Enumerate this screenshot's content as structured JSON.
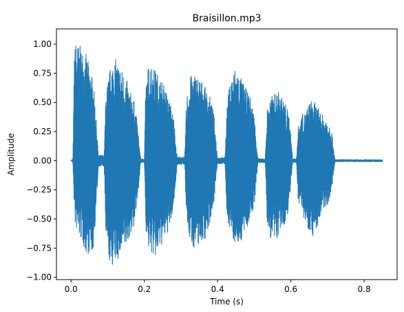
{
  "chart_data": {
    "type": "line",
    "title": "Braisillon.mp3",
    "xlabel": "Time (s)",
    "ylabel": "Amplitude",
    "xlim": [
      -0.04,
      0.89
    ],
    "ylim": [
      -1.02,
      1.13
    ],
    "x_ticks": [
      0.0,
      0.2,
      0.4,
      0.6,
      0.8
    ],
    "x_tick_labels": [
      "0.0",
      "0.2",
      "0.4",
      "0.6",
      "0.8"
    ],
    "y_ticks": [
      1.0,
      0.75,
      0.5,
      0.25,
      0.0,
      -0.25,
      -0.5,
      -0.75,
      -1.0
    ],
    "y_tick_labels": [
      "1.00",
      "0.75",
      "0.50",
      "0.25",
      "0.00",
      "−0.25",
      "−0.50",
      "−0.75",
      "−1.00"
    ],
    "grid": false,
    "series": [
      {
        "color": "#1f77b4",
        "bursts": [
          {
            "start": 0.0,
            "end": 0.075,
            "upper": [
              [
                0.0,
                0.0
              ],
              [
                0.005,
                0.02
              ],
              [
                0.009,
                0.95
              ],
              [
                0.013,
                1.04
              ],
              [
                0.02,
                1.0
              ],
              [
                0.03,
                0.97
              ],
              [
                0.04,
                0.93
              ],
              [
                0.05,
                0.82
              ],
              [
                0.06,
                0.7
              ],
              [
                0.068,
                0.4
              ],
              [
                0.075,
                0.02
              ]
            ],
            "lower": [
              [
                0.0,
                0.0
              ],
              [
                0.005,
                -0.02
              ],
              [
                0.01,
                -0.55
              ],
              [
                0.02,
                -0.65
              ],
              [
                0.03,
                -0.7
              ],
              [
                0.04,
                -0.8
              ],
              [
                0.05,
                -0.8
              ],
              [
                0.06,
                -0.8
              ],
              [
                0.068,
                -0.45
              ],
              [
                0.075,
                -0.02
              ]
            ]
          },
          {
            "start": 0.09,
            "end": 0.19,
            "upper": [
              [
                0.09,
                0.03
              ],
              [
                0.095,
                0.6
              ],
              [
                0.11,
                0.85
              ],
              [
                0.12,
                0.88
              ],
              [
                0.13,
                0.84
              ],
              [
                0.15,
                0.72
              ],
              [
                0.16,
                0.6
              ],
              [
                0.17,
                0.55
              ],
              [
                0.18,
                0.35
              ],
              [
                0.19,
                0.02
              ]
            ],
            "lower": [
              [
                0.09,
                -0.03
              ],
              [
                0.095,
                -0.7
              ],
              [
                0.105,
                -0.88
              ],
              [
                0.11,
                -0.92
              ],
              [
                0.12,
                -0.88
              ],
              [
                0.13,
                -0.85
              ],
              [
                0.15,
                -0.75
              ],
              [
                0.16,
                -0.65
              ],
              [
                0.17,
                -0.6
              ],
              [
                0.18,
                -0.4
              ],
              [
                0.19,
                -0.02
              ]
            ]
          },
          {
            "start": 0.2,
            "end": 0.29,
            "upper": [
              [
                0.2,
                0.02
              ],
              [
                0.203,
                0.6
              ],
              [
                0.21,
                0.8
              ],
              [
                0.215,
                0.87
              ],
              [
                0.22,
                0.84
              ],
              [
                0.23,
                0.78
              ],
              [
                0.25,
                0.68
              ],
              [
                0.26,
                0.6
              ],
              [
                0.27,
                0.5
              ],
              [
                0.28,
                0.38
              ],
              [
                0.29,
                0.02
              ]
            ],
            "lower": [
              [
                0.2,
                -0.02
              ],
              [
                0.205,
                -0.65
              ],
              [
                0.21,
                -0.76
              ],
              [
                0.22,
                -0.8
              ],
              [
                0.23,
                -0.85
              ],
              [
                0.24,
                -0.78
              ],
              [
                0.26,
                -0.65
              ],
              [
                0.27,
                -0.58
              ],
              [
                0.28,
                -0.4
              ],
              [
                0.29,
                -0.02
              ]
            ]
          },
          {
            "start": 0.31,
            "end": 0.4,
            "upper": [
              [
                0.31,
                0.02
              ],
              [
                0.315,
                0.55
              ],
              [
                0.325,
                0.72
              ],
              [
                0.335,
                0.76
              ],
              [
                0.34,
                0.75
              ],
              [
                0.35,
                0.72
              ],
              [
                0.36,
                0.68
              ],
              [
                0.37,
                0.6
              ],
              [
                0.38,
                0.55
              ],
              [
                0.39,
                0.4
              ],
              [
                0.4,
                0.02
              ]
            ],
            "lower": [
              [
                0.31,
                -0.02
              ],
              [
                0.315,
                -0.55
              ],
              [
                0.325,
                -0.7
              ],
              [
                0.335,
                -0.75
              ],
              [
                0.345,
                -0.74
              ],
              [
                0.355,
                -0.7
              ],
              [
                0.365,
                -0.68
              ],
              [
                0.375,
                -0.6
              ],
              [
                0.39,
                -0.35
              ],
              [
                0.4,
                -0.02
              ]
            ]
          },
          {
            "start": 0.42,
            "end": 0.51,
            "upper": [
              [
                0.42,
                0.02
              ],
              [
                0.425,
                0.45
              ],
              [
                0.43,
                0.6
              ],
              [
                0.44,
                0.76
              ],
              [
                0.45,
                0.82
              ],
              [
                0.46,
                0.74
              ],
              [
                0.47,
                0.68
              ],
              [
                0.48,
                0.6
              ],
              [
                0.49,
                0.55
              ],
              [
                0.5,
                0.4
              ],
              [
                0.51,
                0.02
              ]
            ],
            "lower": [
              [
                0.42,
                -0.02
              ],
              [
                0.425,
                -0.5
              ],
              [
                0.435,
                -0.6
              ],
              [
                0.445,
                -0.7
              ],
              [
                0.455,
                -0.72
              ],
              [
                0.465,
                -0.7
              ],
              [
                0.475,
                -0.62
              ],
              [
                0.49,
                -0.5
              ],
              [
                0.5,
                -0.4
              ],
              [
                0.51,
                -0.02
              ]
            ]
          },
          {
            "start": 0.53,
            "end": 0.605,
            "upper": [
              [
                0.53,
                0.02
              ],
              [
                0.535,
                0.45
              ],
              [
                0.545,
                0.55
              ],
              [
                0.555,
                0.58
              ],
              [
                0.565,
                0.6
              ],
              [
                0.575,
                0.55
              ],
              [
                0.585,
                0.5
              ],
              [
                0.595,
                0.4
              ],
              [
                0.605,
                0.02
              ]
            ],
            "lower": [
              [
                0.53,
                -0.02
              ],
              [
                0.535,
                -0.55
              ],
              [
                0.545,
                -0.68
              ],
              [
                0.555,
                -0.72
              ],
              [
                0.565,
                -0.66
              ],
              [
                0.575,
                -0.6
              ],
              [
                0.585,
                -0.55
              ],
              [
                0.595,
                -0.4
              ],
              [
                0.605,
                -0.02
              ]
            ]
          },
          {
            "start": 0.615,
            "end": 0.72,
            "upper": [
              [
                0.615,
                0.02
              ],
              [
                0.62,
                0.3
              ],
              [
                0.63,
                0.4
              ],
              [
                0.64,
                0.42
              ],
              [
                0.65,
                0.5
              ],
              [
                0.66,
                0.53
              ],
              [
                0.67,
                0.48
              ],
              [
                0.68,
                0.42
              ],
              [
                0.69,
                0.38
              ],
              [
                0.7,
                0.37
              ],
              [
                0.71,
                0.3
              ],
              [
                0.72,
                0.02
              ]
            ],
            "lower": [
              [
                0.615,
                -0.02
              ],
              [
                0.62,
                -0.35
              ],
              [
                0.63,
                -0.42
              ],
              [
                0.64,
                -0.55
              ],
              [
                0.65,
                -0.6
              ],
              [
                0.66,
                -0.65
              ],
              [
                0.67,
                -0.6
              ],
              [
                0.68,
                -0.5
              ],
              [
                0.69,
                -0.42
              ],
              [
                0.7,
                -0.38
              ],
              [
                0.71,
                -0.3
              ],
              [
                0.72,
                -0.02
              ]
            ]
          }
        ],
        "gaps": [
          {
            "start": 0.075,
            "end": 0.09,
            "amp": 0.05
          },
          {
            "start": 0.19,
            "end": 0.2,
            "amp": 0.02
          },
          {
            "start": 0.29,
            "end": 0.31,
            "amp": 0.035
          },
          {
            "start": 0.4,
            "end": 0.42,
            "amp": 0.03
          },
          {
            "start": 0.51,
            "end": 0.53,
            "amp": 0.02
          },
          {
            "start": 0.605,
            "end": 0.615,
            "amp": 0.02
          },
          {
            "start": 0.72,
            "end": 0.85,
            "amp": 0.012
          }
        ]
      }
    ]
  }
}
